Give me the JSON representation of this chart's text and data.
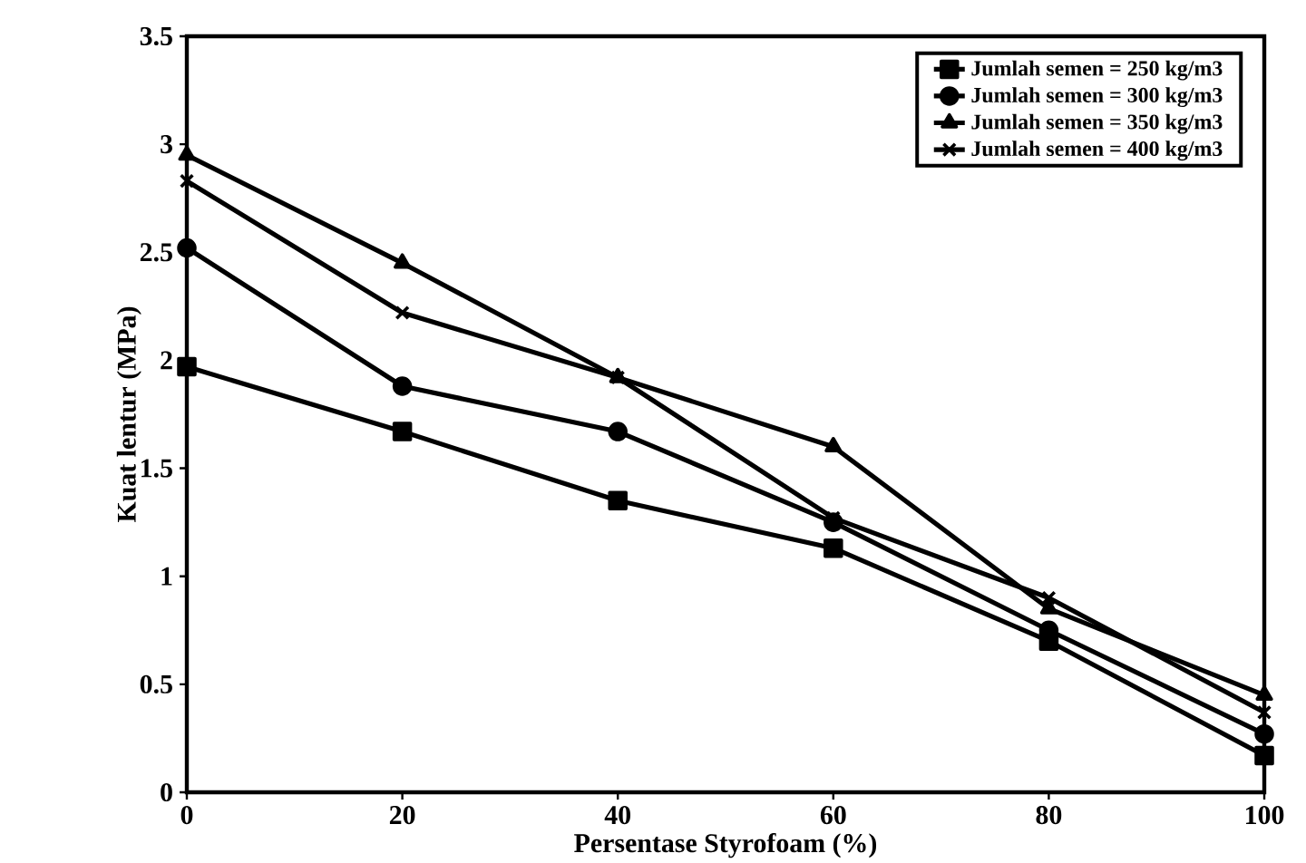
{
  "chart_data": {
    "type": "line",
    "xlabel": "Persentase Styrofoam (%)",
    "ylabel": "Kuat lentur (MPa)",
    "x": [
      0,
      20,
      40,
      60,
      80,
      100
    ],
    "series": [
      {
        "name": "Jumlah semen = 250 kg/m3",
        "color": "#000000",
        "marker": "square",
        "values": [
          1.97,
          1.67,
          1.35,
          1.13,
          0.7,
          0.17
        ]
      },
      {
        "name": "Jumlah semen = 300 kg/m3",
        "color": "#000000",
        "marker": "circle",
        "values": [
          2.52,
          1.88,
          1.67,
          1.25,
          0.75,
          0.27
        ]
      },
      {
        "name": "Jumlah semen = 350 kg/m3",
        "color": "#000000",
        "marker": "triangle",
        "values": [
          2.95,
          2.45,
          1.92,
          1.6,
          0.85,
          0.45
        ]
      },
      {
        "name": "Jumlah semen = 400 kg/m3",
        "color": "#000000",
        "marker": "cross",
        "values": [
          2.83,
          2.22,
          1.92,
          1.27,
          0.9,
          0.37
        ]
      }
    ],
    "xlim": [
      0,
      100
    ],
    "xticks": [
      0,
      20,
      40,
      60,
      80,
      100
    ],
    "ylim": [
      0,
      3.5
    ],
    "yticks": [
      0,
      0.5,
      1,
      1.5,
      2,
      2.5,
      3,
      3.5
    ],
    "grid": false,
    "legend": "top right",
    "line_style": "solid"
  }
}
